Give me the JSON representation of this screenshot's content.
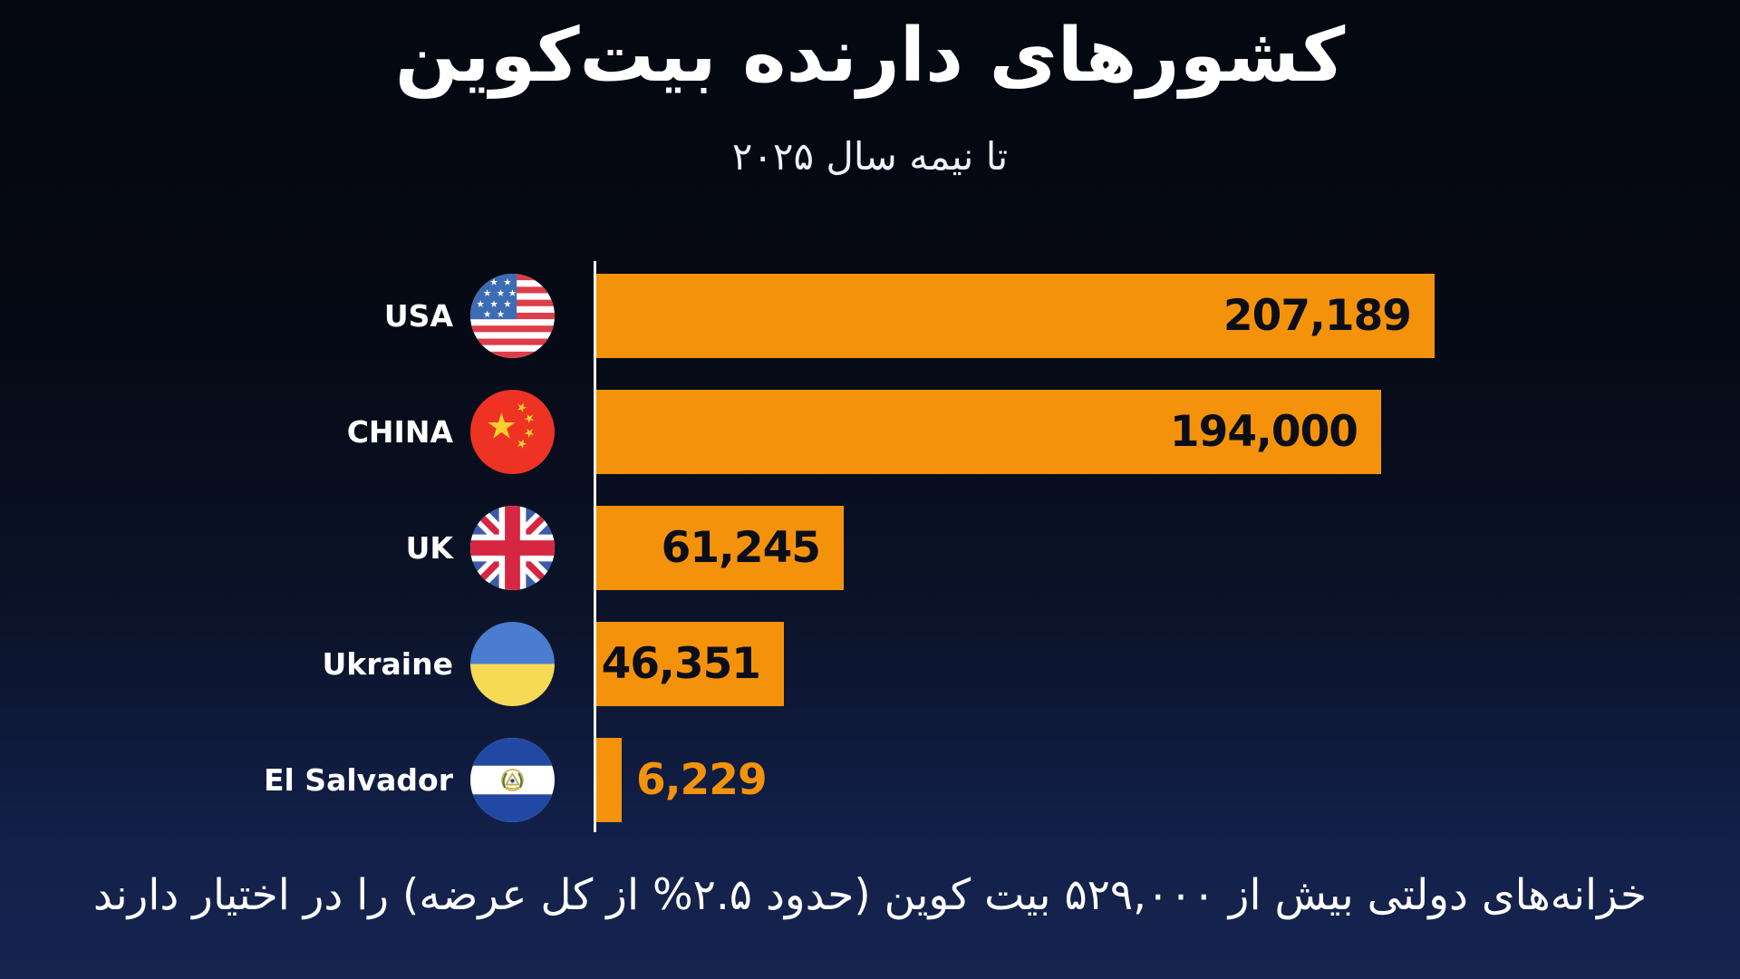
{
  "title": "کشورهای دارنده بیت‌کوین",
  "subtitle": "تا نیمه سال ۲۰۲۵",
  "footnote": "خزانه‌های دولتی بیش از ۵۲۹,۰۰۰ بیت کوین (حدود ۲.۵% از کل عرضه) را در اختیار دارند",
  "colors": {
    "bar": "#F4930B",
    "bar_label_dark": "#0B0E18",
    "bar_label_outside": "#F4930B",
    "background_top": "#040710",
    "background_bottom": "#16254F",
    "axis": "#FFFFFF",
    "text": "#FFFFFF"
  },
  "chart_data": {
    "type": "bar",
    "orientation": "horizontal",
    "title": "کشورهای دارنده بیت‌کوین",
    "subtitle": "تا نیمه سال ۲۰۲۵",
    "categories": [
      "USA",
      "CHINA",
      "UK",
      "Ukraine",
      "El Salvador"
    ],
    "values": [
      207189,
      194000,
      61245,
      46351,
      6229
    ],
    "value_labels": [
      "207,189",
      "194,000",
      "61,245",
      "46,351",
      "6,229"
    ],
    "flag_icons": [
      "usa-flag-icon",
      "china-flag-icon",
      "uk-flag-icon",
      "ukraine-flag-icon",
      "el-salvador-flag-icon"
    ],
    "xlim": [
      0,
      207189
    ],
    "grid": false,
    "legend": false,
    "value_label_position": "inside-end, outside-end for smallest bar"
  }
}
